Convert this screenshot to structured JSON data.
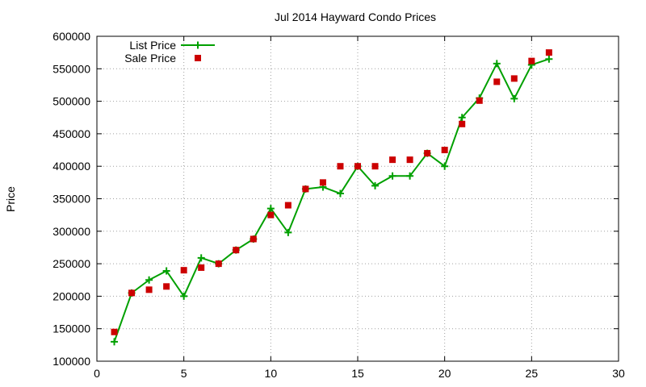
{
  "chart_data": {
    "type": "line",
    "title": "Jul 2014 Hayward Condo Prices",
    "xlabel": "",
    "ylabel": "Price",
    "xlim": [
      0,
      30
    ],
    "ylim": [
      100000,
      600000
    ],
    "xticks": [
      0,
      5,
      10,
      15,
      20,
      25,
      30
    ],
    "yticks": [
      100000,
      150000,
      200000,
      250000,
      300000,
      350000,
      400000,
      450000,
      500000,
      550000,
      600000
    ],
    "grid": true,
    "legend_position": "top-left",
    "x": [
      1,
      2,
      3,
      4,
      5,
      6,
      7,
      8,
      9,
      10,
      11,
      12,
      13,
      14,
      15,
      16,
      17,
      18,
      19,
      20,
      21,
      22,
      23,
      24,
      25,
      26
    ],
    "series": [
      {
        "name": "List Price",
        "style": "line-points",
        "marker": "plus",
        "color": "#00a000",
        "values": [
          130000,
          205000,
          225000,
          239000,
          200000,
          259000,
          250000,
          271000,
          288000,
          335000,
          298000,
          365000,
          368000,
          358000,
          400000,
          370000,
          385000,
          385000,
          420000,
          400000,
          475000,
          505000,
          558000,
          504000,
          556000,
          565000
        ]
      },
      {
        "name": "Sale Price",
        "style": "points",
        "marker": "square",
        "color": "#cc0000",
        "values": [
          145000,
          205000,
          210000,
          215000,
          240000,
          244000,
          250000,
          271000,
          288000,
          325000,
          340000,
          365000,
          375000,
          400000,
          400000,
          400000,
          410000,
          410000,
          420000,
          425000,
          465000,
          501000,
          530000,
          535000,
          562000,
          575000
        ]
      }
    ]
  }
}
